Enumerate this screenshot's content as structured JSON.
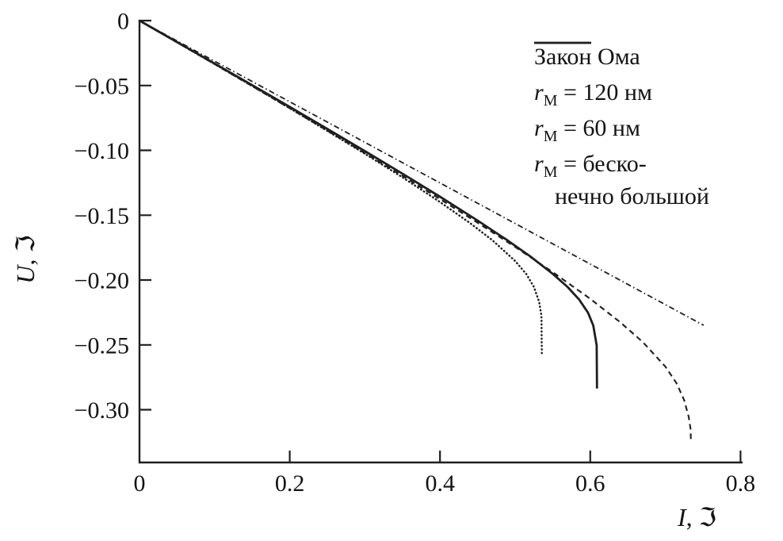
{
  "colors": {
    "line": "#1f1f1f",
    "text": "#141414",
    "background": "#ffffff"
  },
  "axis_labels": {
    "y_var": "U",
    "y_rest": ", ℑ",
    "x_var": "I",
    "x_rest": ", ℑ"
  },
  "chart_data": {
    "type": "line",
    "title": "",
    "xlabel": "I, ℑ",
    "ylabel": "U, ℑ",
    "xlim": [
      0,
      0.8
    ],
    "ylim": [
      -0.341,
      0
    ],
    "grid": false,
    "legend_position": "top-right",
    "x_ticks": {
      "values": [
        0,
        0.2,
        0.4,
        0.6,
        0.8
      ],
      "labels": [
        "0",
        "0.2",
        "0.4",
        "0.6",
        "0.8"
      ]
    },
    "y_ticks": {
      "values": [
        0,
        -0.05,
        -0.1,
        -0.15,
        -0.2,
        -0.25,
        -0.3
      ],
      "labels": [
        "0",
        "−0.05",
        "−0.10",
        "−0.15",
        "−0.20",
        "−0.25",
        "−0.30"
      ]
    },
    "series": [
      {
        "key": "ohm-law",
        "name": "Закон Ома",
        "line_style": "dashdot",
        "dash": "7 3.5 1.5 3.5",
        "width": 1.8,
        "cap": "butt",
        "points": [
          [
            0,
            0
          ],
          [
            0.751,
            -0.2349
          ]
        ]
      },
      {
        "key": "r-120nm",
        "name": "rМ = 120 нм",
        "line_style": "solid",
        "dash": "",
        "width": 2.8,
        "cap": "butt",
        "points": [
          [
            0,
            0
          ],
          [
            0.05,
            -0.0165
          ],
          [
            0.1,
            -0.0331
          ],
          [
            0.15,
            -0.0497
          ],
          [
            0.2,
            -0.0665
          ],
          [
            0.25,
            -0.0835
          ],
          [
            0.3,
            -0.1006
          ],
          [
            0.35,
            -0.118
          ],
          [
            0.4,
            -0.1358
          ],
          [
            0.45,
            -0.1541
          ],
          [
            0.49,
            -0.1695
          ],
          [
            0.52,
            -0.1817
          ],
          [
            0.55,
            -0.1952
          ],
          [
            0.57,
            -0.2055
          ],
          [
            0.585,
            -0.2149
          ],
          [
            0.597,
            -0.2252
          ],
          [
            0.604,
            -0.2351
          ],
          [
            0.6085,
            -0.2504
          ],
          [
            0.609,
            -0.2837
          ]
        ]
      },
      {
        "key": "r-60nm",
        "name": "rМ = 60 нм",
        "line_style": "dotted",
        "dash": "0.5 4",
        "width": 2.5,
        "cap": "round",
        "points": [
          [
            0,
            0
          ],
          [
            0.05,
            -0.0167
          ],
          [
            0.1,
            -0.0335
          ],
          [
            0.15,
            -0.0504
          ],
          [
            0.2,
            -0.0675
          ],
          [
            0.25,
            -0.085
          ],
          [
            0.3,
            -0.1026
          ],
          [
            0.35,
            -0.1208
          ],
          [
            0.4,
            -0.1399
          ],
          [
            0.44,
            -0.1561
          ],
          [
            0.47,
            -0.1695
          ],
          [
            0.5,
            -0.1853
          ],
          [
            0.515,
            -0.1955
          ],
          [
            0.525,
            -0.2053
          ],
          [
            0.532,
            -0.2169
          ],
          [
            0.535,
            -0.2277
          ],
          [
            0.5355,
            -0.2577
          ]
        ]
      },
      {
        "key": "r-infinite",
        "name": "rМ = бесконечно большой",
        "line_style": "dashed",
        "dash": "7 5",
        "width": 2.1,
        "cap": "butt",
        "points": [
          [
            0,
            0
          ],
          [
            0.05,
            -0.0168
          ],
          [
            0.1,
            -0.0336
          ],
          [
            0.15,
            -0.0505
          ],
          [
            0.2,
            -0.0676
          ],
          [
            0.25,
            -0.0848
          ],
          [
            0.3,
            -0.1022
          ],
          [
            0.35,
            -0.1197
          ],
          [
            0.4,
            -0.1376
          ],
          [
            0.45,
            -0.1558
          ],
          [
            0.5,
            -0.1745
          ],
          [
            0.55,
            -0.1939
          ],
          [
            0.6,
            -0.2145
          ],
          [
            0.64,
            -0.2326
          ],
          [
            0.67,
            -0.2479
          ],
          [
            0.7,
            -0.2668
          ],
          [
            0.715,
            -0.2797
          ],
          [
            0.725,
            -0.2926
          ],
          [
            0.731,
            -0.3055
          ],
          [
            0.7335,
            -0.315
          ],
          [
            0.734,
            -0.3248
          ]
        ]
      }
    ]
  },
  "legend": {
    "items": [
      {
        "var": "",
        "sub": "",
        "text": "Закон Ома",
        "text2": ""
      },
      {
        "var": "r",
        "sub": "М",
        "text": " = 120 нм",
        "text2": ""
      },
      {
        "var": "r",
        "sub": "М",
        "text": " = 60 нм",
        "text2": ""
      },
      {
        "var": "r",
        "sub": "М",
        "text": " = беско-",
        "text2": "нечно большой"
      }
    ]
  }
}
